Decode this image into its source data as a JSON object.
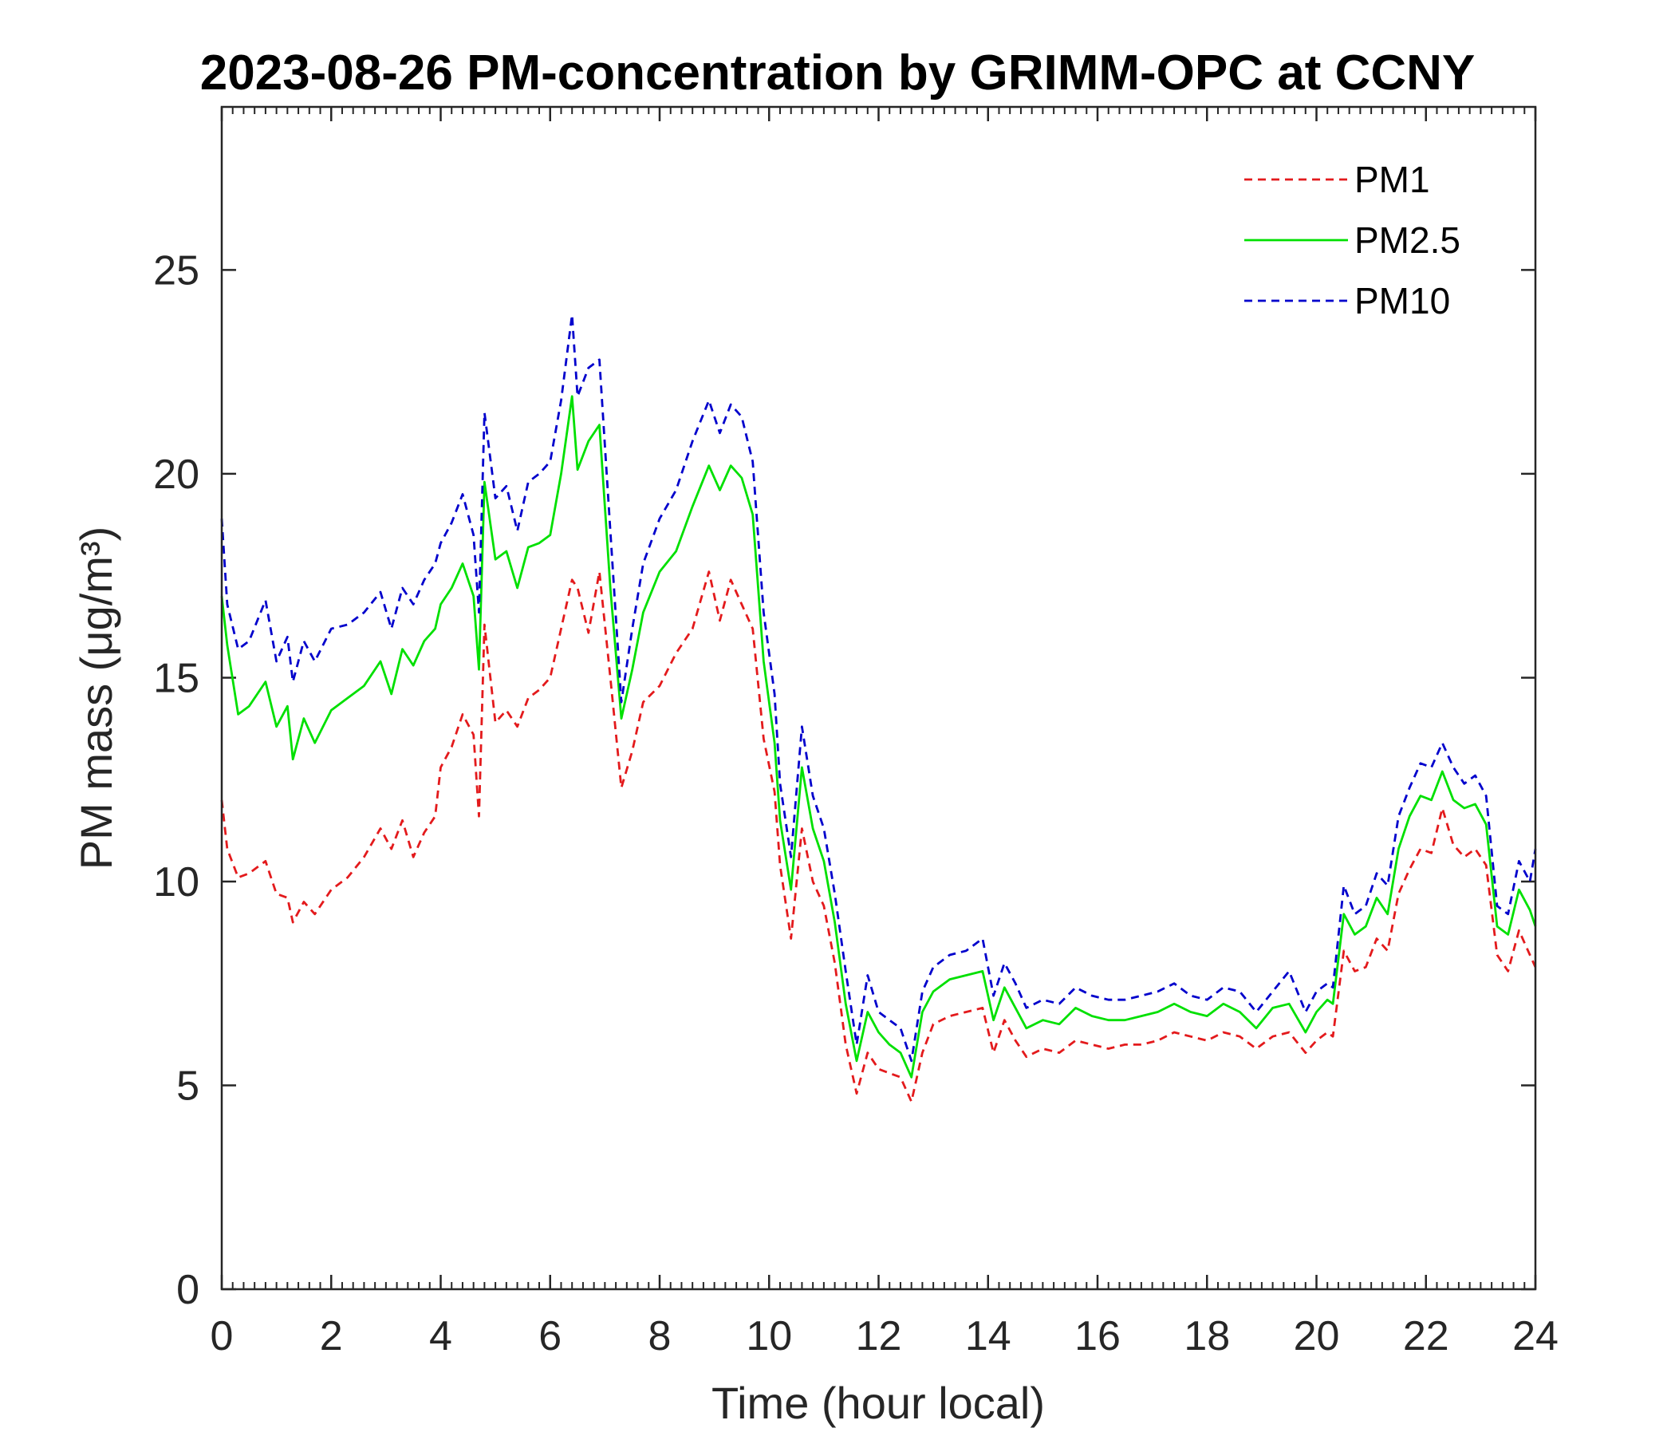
{
  "chart_data": {
    "type": "line",
    "title": "2023-08-26 PM-concentration by GRIMM-OPC at CCNY",
    "xlabel": "Time (hour local)",
    "ylabel": "PM mass (μg/m³)",
    "xlim": [
      0,
      24
    ],
    "ylim": [
      0,
      29
    ],
    "xticks": [
      0,
      2,
      4,
      6,
      8,
      10,
      12,
      14,
      16,
      18,
      20,
      22,
      24
    ],
    "yticks": [
      0,
      5,
      10,
      15,
      20,
      25
    ],
    "grid": false,
    "legend_position": "top-right",
    "series": [
      {
        "name": "PM1",
        "color": "#e31a1c",
        "style": "dashed",
        "x": [
          0,
          0.1,
          0.3,
          0.5,
          0.8,
          1.0,
          1.2,
          1.3,
          1.5,
          1.7,
          2.0,
          2.3,
          2.6,
          2.9,
          3.1,
          3.3,
          3.5,
          3.7,
          3.9,
          4.0,
          4.2,
          4.4,
          4.6,
          4.7,
          4.8,
          5.0,
          5.2,
          5.4,
          5.6,
          5.8,
          6.0,
          6.2,
          6.4,
          6.5,
          6.7,
          6.9,
          7.1,
          7.3,
          7.5,
          7.7,
          8.0,
          8.3,
          8.6,
          8.9,
          9.1,
          9.3,
          9.5,
          9.7,
          9.9,
          10.1,
          10.2,
          10.4,
          10.6,
          10.8,
          11.0,
          11.2,
          11.4,
          11.6,
          11.8,
          12.0,
          12.2,
          12.4,
          12.6,
          12.8,
          13.0,
          13.3,
          13.6,
          13.9,
          14.1,
          14.3,
          14.5,
          14.7,
          15.0,
          15.3,
          15.6,
          15.9,
          16.2,
          16.5,
          16.8,
          17.1,
          17.4,
          17.7,
          18.0,
          18.3,
          18.6,
          18.9,
          19.2,
          19.5,
          19.8,
          20.0,
          20.2,
          20.3,
          20.5,
          20.7,
          20.9,
          21.1,
          21.3,
          21.5,
          21.7,
          21.9,
          22.1,
          22.3,
          22.5,
          22.7,
          22.9,
          23.1,
          23.3,
          23.5,
          23.7,
          23.9,
          24.0
        ],
        "y": [
          12.0,
          10.8,
          10.1,
          10.2,
          10.5,
          9.7,
          9.6,
          9.0,
          9.5,
          9.2,
          9.8,
          10.1,
          10.6,
          11.3,
          10.8,
          11.5,
          10.6,
          11.2,
          11.6,
          12.8,
          13.3,
          14.1,
          13.6,
          11.6,
          16.3,
          13.9,
          14.2,
          13.8,
          14.5,
          14.7,
          15.0,
          16.2,
          17.4,
          17.2,
          16.1,
          17.6,
          15.0,
          12.3,
          13.2,
          14.4,
          14.8,
          15.6,
          16.2,
          17.6,
          16.4,
          17.4,
          16.8,
          16.2,
          13.5,
          12.2,
          10.4,
          8.6,
          11.3,
          10.0,
          9.4,
          8.0,
          6.0,
          4.8,
          5.8,
          5.4,
          5.3,
          5.2,
          4.6,
          5.8,
          6.5,
          6.7,
          6.8,
          6.9,
          5.8,
          6.6,
          6.1,
          5.7,
          5.9,
          5.8,
          6.1,
          6.0,
          5.9,
          6.0,
          6.0,
          6.1,
          6.3,
          6.2,
          6.1,
          6.3,
          6.2,
          5.9,
          6.2,
          6.3,
          5.8,
          6.1,
          6.3,
          6.2,
          8.3,
          7.8,
          7.9,
          8.6,
          8.3,
          9.7,
          10.3,
          10.8,
          10.7,
          11.8,
          10.9,
          10.6,
          10.8,
          10.4,
          8.2,
          7.8,
          8.8,
          8.2,
          7.9
        ]
      },
      {
        "name": "PM2.5",
        "color": "#00e000",
        "style": "solid",
        "x": [
          0,
          0.1,
          0.3,
          0.5,
          0.8,
          1.0,
          1.2,
          1.3,
          1.5,
          1.7,
          2.0,
          2.3,
          2.6,
          2.9,
          3.1,
          3.3,
          3.5,
          3.7,
          3.9,
          4.0,
          4.2,
          4.4,
          4.6,
          4.7,
          4.8,
          5.0,
          5.2,
          5.4,
          5.6,
          5.8,
          6.0,
          6.2,
          6.4,
          6.5,
          6.7,
          6.9,
          7.1,
          7.3,
          7.5,
          7.7,
          8.0,
          8.3,
          8.6,
          8.9,
          9.1,
          9.3,
          9.5,
          9.7,
          9.9,
          10.1,
          10.2,
          10.4,
          10.6,
          10.8,
          11.0,
          11.2,
          11.4,
          11.6,
          11.8,
          12.0,
          12.2,
          12.4,
          12.6,
          12.8,
          13.0,
          13.3,
          13.6,
          13.9,
          14.1,
          14.3,
          14.5,
          14.7,
          15.0,
          15.3,
          15.6,
          15.9,
          16.2,
          16.5,
          16.8,
          17.1,
          17.4,
          17.7,
          18.0,
          18.3,
          18.6,
          18.9,
          19.2,
          19.5,
          19.8,
          20.0,
          20.2,
          20.3,
          20.5,
          20.7,
          20.9,
          21.1,
          21.3,
          21.5,
          21.7,
          21.9,
          22.1,
          22.3,
          22.5,
          22.7,
          22.9,
          23.1,
          23.3,
          23.5,
          23.7,
          23.9,
          24.0
        ],
        "y": [
          17.0,
          15.8,
          14.1,
          14.3,
          14.9,
          13.8,
          14.3,
          13.0,
          14.0,
          13.4,
          14.2,
          14.5,
          14.8,
          15.4,
          14.6,
          15.7,
          15.3,
          15.9,
          16.2,
          16.8,
          17.2,
          17.8,
          17.0,
          15.2,
          19.8,
          17.9,
          18.1,
          17.2,
          18.2,
          18.3,
          18.5,
          20.0,
          21.9,
          20.1,
          20.8,
          21.2,
          17.2,
          14.0,
          15.2,
          16.6,
          17.6,
          18.1,
          19.2,
          20.2,
          19.6,
          20.2,
          19.9,
          19.0,
          15.4,
          13.4,
          11.5,
          9.8,
          12.8,
          11.3,
          10.5,
          9.0,
          7.0,
          5.6,
          6.8,
          6.3,
          6.0,
          5.8,
          5.2,
          6.8,
          7.3,
          7.6,
          7.7,
          7.8,
          6.6,
          7.4,
          6.9,
          6.4,
          6.6,
          6.5,
          6.9,
          6.7,
          6.6,
          6.6,
          6.7,
          6.8,
          7.0,
          6.8,
          6.7,
          7.0,
          6.8,
          6.4,
          6.9,
          7.0,
          6.3,
          6.8,
          7.1,
          7.0,
          9.2,
          8.7,
          8.9,
          9.6,
          9.2,
          10.8,
          11.6,
          12.1,
          12.0,
          12.7,
          12.0,
          11.8,
          11.9,
          11.4,
          8.9,
          8.7,
          9.8,
          9.3,
          8.9
        ]
      },
      {
        "name": "PM10",
        "color": "#0000cc",
        "style": "dashed",
        "x": [
          0,
          0.1,
          0.3,
          0.5,
          0.8,
          1.0,
          1.2,
          1.3,
          1.5,
          1.7,
          2.0,
          2.3,
          2.6,
          2.9,
          3.1,
          3.3,
          3.5,
          3.7,
          3.9,
          4.0,
          4.2,
          4.4,
          4.6,
          4.7,
          4.8,
          5.0,
          5.2,
          5.4,
          5.6,
          5.8,
          6.0,
          6.2,
          6.4,
          6.5,
          6.7,
          6.9,
          7.1,
          7.3,
          7.5,
          7.7,
          8.0,
          8.3,
          8.6,
          8.9,
          9.1,
          9.3,
          9.5,
          9.7,
          9.9,
          10.1,
          10.2,
          10.4,
          10.6,
          10.8,
          11.0,
          11.2,
          11.4,
          11.6,
          11.8,
          12.0,
          12.2,
          12.4,
          12.6,
          12.8,
          13.0,
          13.3,
          13.6,
          13.9,
          14.1,
          14.3,
          14.5,
          14.7,
          15.0,
          15.3,
          15.6,
          15.9,
          16.2,
          16.5,
          16.8,
          17.1,
          17.4,
          17.7,
          18.0,
          18.3,
          18.6,
          18.9,
          19.2,
          19.5,
          19.8,
          20.0,
          20.2,
          20.3,
          20.5,
          20.7,
          20.9,
          21.1,
          21.3,
          21.5,
          21.7,
          21.9,
          22.1,
          22.3,
          22.5,
          22.7,
          22.9,
          23.1,
          23.3,
          23.5,
          23.7,
          23.9,
          24.0
        ],
        "y": [
          18.9,
          16.8,
          15.7,
          15.9,
          16.9,
          15.4,
          16.0,
          14.9,
          15.9,
          15.4,
          16.2,
          16.3,
          16.6,
          17.1,
          16.2,
          17.2,
          16.8,
          17.4,
          17.8,
          18.3,
          18.8,
          19.5,
          18.5,
          16.6,
          21.5,
          19.4,
          19.7,
          18.6,
          19.8,
          20.0,
          20.3,
          21.8,
          23.9,
          21.9,
          22.6,
          22.8,
          18.6,
          14.4,
          16.2,
          17.8,
          18.9,
          19.6,
          20.8,
          21.8,
          21.0,
          21.7,
          21.4,
          20.3,
          16.6,
          14.6,
          12.4,
          10.6,
          13.8,
          12.1,
          11.3,
          9.7,
          7.8,
          6.0,
          7.7,
          6.8,
          6.6,
          6.4,
          5.6,
          7.3,
          7.9,
          8.2,
          8.3,
          8.6,
          7.2,
          8.0,
          7.5,
          6.9,
          7.1,
          7.0,
          7.4,
          7.2,
          7.1,
          7.1,
          7.2,
          7.3,
          7.5,
          7.2,
          7.1,
          7.4,
          7.3,
          6.8,
          7.3,
          7.8,
          6.8,
          7.3,
          7.5,
          7.4,
          9.9,
          9.2,
          9.4,
          10.2,
          9.9,
          11.6,
          12.3,
          12.9,
          12.8,
          13.4,
          12.8,
          12.4,
          12.6,
          12.1,
          9.4,
          9.2,
          10.5,
          10.0,
          10.8
        ]
      }
    ]
  }
}
